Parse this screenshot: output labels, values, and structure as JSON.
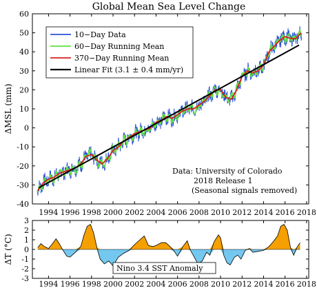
{
  "chart_data": [
    {
      "type": "line",
      "title": "Global Mean Sea Level Change",
      "ylabel": "ΔMSL (mm)",
      "xlim": [
        1992.5,
        2018.2
      ],
      "ylim": [
        -40,
        60
      ],
      "xticks": [
        1994,
        1996,
        1998,
        2000,
        2002,
        2004,
        2006,
        2008,
        2010,
        2012,
        2014,
        2016,
        2018
      ],
      "yticks": [
        -40,
        -30,
        -20,
        -10,
        0,
        10,
        20,
        30,
        40,
        50,
        60
      ],
      "legend_position": "top-left",
      "series": [
        {
          "name": "10−Day Data",
          "color": "#2b50d6"
        },
        {
          "name": "60−Day Running Mean",
          "color": "#5fe03a"
        },
        {
          "name": "370−Day Running Mean",
          "color": "#d6201c",
          "x": [
            1993.0,
            1993.5,
            1994.0,
            1994.5,
            1995.0,
            1995.5,
            1996.0,
            1996.5,
            1997.0,
            1997.5,
            1998.0,
            1998.5,
            1999.0,
            1999.5,
            2000.0,
            2000.5,
            2001.0,
            2001.5,
            2002.0,
            2002.5,
            2003.0,
            2003.5,
            2004.0,
            2004.5,
            2005.0,
            2005.5,
            2006.0,
            2006.5,
            2007.0,
            2007.5,
            2008.0,
            2008.5,
            2009.0,
            2009.5,
            2010.0,
            2010.5,
            2011.0,
            2011.5,
            2012.0,
            2012.5,
            2013.0,
            2013.5,
            2014.0,
            2014.5,
            2015.0,
            2015.5,
            2016.0,
            2016.5,
            2017.0,
            2017.5
          ],
          "y": [
            -33,
            -29,
            -27,
            -26,
            -24,
            -23,
            -22,
            -21,
            -19,
            -15,
            -14,
            -17,
            -19,
            -16,
            -12,
            -10,
            -7,
            -5,
            -3,
            -2,
            -1,
            0,
            3,
            4,
            6,
            5,
            7,
            9,
            10,
            10,
            12,
            14,
            17,
            20,
            20,
            16,
            15,
            20,
            27,
            30,
            29,
            30,
            33,
            40,
            43,
            46,
            48,
            47,
            47,
            50
          ]
        },
        {
          "name": "Linear Fit (3.1 ± 0.4 mm/yr)",
          "color": "#000000",
          "x": [
            1993.1,
            2017.3
          ],
          "y": [
            -31.5,
            43.5
          ]
        }
      ],
      "annotations": [
        "Data: University of Colorado",
        "2018 Release 1",
        "(Seasonal signals removed)"
      ]
    },
    {
      "type": "area",
      "ylabel": "ΔT (°C)",
      "series_label": "Nino 3.4 SST Anomaly",
      "xlim": [
        1992.5,
        2018.2
      ],
      "ylim": [
        -3,
        3
      ],
      "xticks": [
        1994,
        1996,
        1998,
        2000,
        2002,
        2004,
        2006,
        2008,
        2010,
        2012,
        2014,
        2016,
        2018
      ],
      "yticks": [
        -3,
        -2,
        -1,
        0,
        1,
        2,
        3
      ],
      "positive_color": "#f5a000",
      "negative_color": "#74c8f0",
      "x": [
        1993.0,
        1993.3,
        1993.6,
        1994.0,
        1994.3,
        1994.7,
        1995.0,
        1995.3,
        1995.7,
        1996.0,
        1996.5,
        1997.0,
        1997.3,
        1997.6,
        1997.9,
        1998.2,
        1998.5,
        1998.8,
        1999.2,
        1999.6,
        2000.0,
        2000.5,
        2001.0,
        2001.5,
        2002.0,
        2002.5,
        2002.9,
        2003.3,
        2003.7,
        2004.0,
        2004.5,
        2004.9,
        2005.3,
        2005.7,
        2006.0,
        2006.5,
        2006.9,
        2007.2,
        2007.6,
        2007.9,
        2008.3,
        2008.7,
        2009.0,
        2009.4,
        2009.8,
        2010.0,
        2010.3,
        2010.6,
        2010.9,
        2011.3,
        2011.6,
        2011.9,
        2012.3,
        2012.7,
        2013.0,
        2013.5,
        2014.0,
        2014.5,
        2014.9,
        2015.3,
        2015.6,
        2015.9,
        2016.2,
        2016.5,
        2016.8,
        2017.1,
        2017.4
      ],
      "y": [
        0.2,
        0.6,
        0.3,
        0.1,
        0.5,
        1.1,
        0.6,
        0.0,
        -0.7,
        -0.8,
        -0.3,
        0.3,
        1.5,
        2.4,
        2.6,
        1.7,
        0.2,
        -1.0,
        -1.5,
        -1.2,
        -1.7,
        -0.8,
        -0.4,
        -0.1,
        0.5,
        1.0,
        1.4,
        0.4,
        0.3,
        0.4,
        0.7,
        0.7,
        0.3,
        -0.2,
        -0.7,
        0.3,
        0.9,
        -0.1,
        -0.9,
        -1.5,
        -1.2,
        -0.3,
        -0.6,
        0.8,
        1.5,
        1.2,
        -0.6,
        -1.4,
        -1.6,
        -0.8,
        -0.6,
        -1.0,
        -0.1,
        0.1,
        -0.3,
        -0.2,
        -0.1,
        0.3,
        0.8,
        1.4,
        2.4,
        2.6,
        2.0,
        0.2,
        -0.6,
        0.2,
        0.7
      ]
    }
  ]
}
